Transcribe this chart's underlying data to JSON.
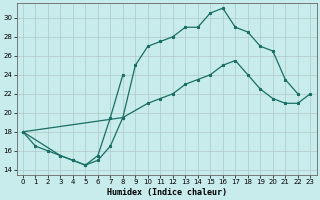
{
  "xlabel": "Humidex (Indice chaleur)",
  "xlim": [
    -0.5,
    23.5
  ],
  "ylim": [
    13.5,
    31.5
  ],
  "yticks": [
    14,
    16,
    18,
    20,
    22,
    24,
    26,
    28,
    30
  ],
  "xticks": [
    0,
    1,
    2,
    3,
    4,
    5,
    6,
    7,
    8,
    9,
    10,
    11,
    12,
    13,
    14,
    15,
    16,
    17,
    18,
    19,
    20,
    21,
    22,
    23
  ],
  "bg_color": "#c8ecec",
  "grid_color": "#b0c8c8",
  "line_color": "#1a6e64",
  "line1_x": [
    0,
    1,
    2,
    3,
    4,
    5,
    6,
    7,
    8,
    9,
    10,
    11,
    12,
    13,
    14,
    15,
    16,
    17,
    18,
    19,
    20,
    21,
    22
  ],
  "line1_y": [
    18,
    16.5,
    16,
    15.5,
    15,
    14.5,
    15,
    16.5,
    19.5,
    25,
    27,
    27.5,
    28,
    29,
    29,
    30.5,
    31,
    29,
    28.5,
    27,
    26.5,
    23.5,
    22
  ],
  "line2_x": [
    0,
    3,
    4,
    5,
    6,
    7,
    8
  ],
  "line2_y": [
    18,
    15.5,
    15,
    14.5,
    15.5,
    19.5,
    24
  ],
  "line3_x": [
    0,
    8,
    10,
    11,
    12,
    13,
    14,
    15,
    16,
    17,
    18,
    19,
    20,
    21,
    22,
    23
  ],
  "line3_y": [
    18,
    19.5,
    21,
    21.5,
    22,
    23,
    23.5,
    24,
    25,
    25.5,
    24,
    22.5,
    21.5,
    21,
    21,
    22
  ]
}
